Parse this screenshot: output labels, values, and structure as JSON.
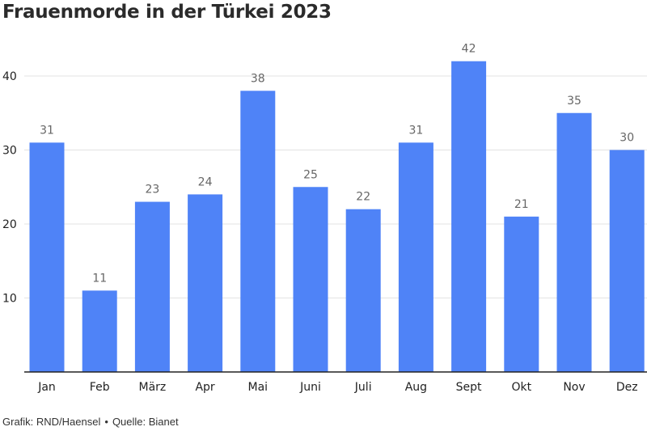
{
  "title": "Frauenmorde in der Türkei 2023",
  "credit": {
    "grafik": "Grafik: RND/Haensel",
    "separator": "•",
    "quelle": "Quelle: Bianet"
  },
  "colors": {
    "bar": "#4f83f7",
    "grid": "#e3e3e3",
    "axis": "#222222",
    "label": "#666666"
  },
  "chart_data": {
    "type": "bar",
    "title": "Frauenmorde in der Türkei 2023",
    "categories": [
      "Jan",
      "Feb",
      "März",
      "Apr",
      "Mai",
      "Juni",
      "Juli",
      "Aug",
      "Sept",
      "Okt",
      "Nov",
      "Dez"
    ],
    "values": [
      31,
      11,
      23,
      24,
      38,
      25,
      22,
      31,
      42,
      21,
      35,
      30
    ],
    "yticks": [
      10,
      20,
      30,
      40
    ],
    "ylim": [
      0,
      45
    ],
    "grid": true,
    "data_labels": true,
    "xlabel": "",
    "ylabel": ""
  }
}
